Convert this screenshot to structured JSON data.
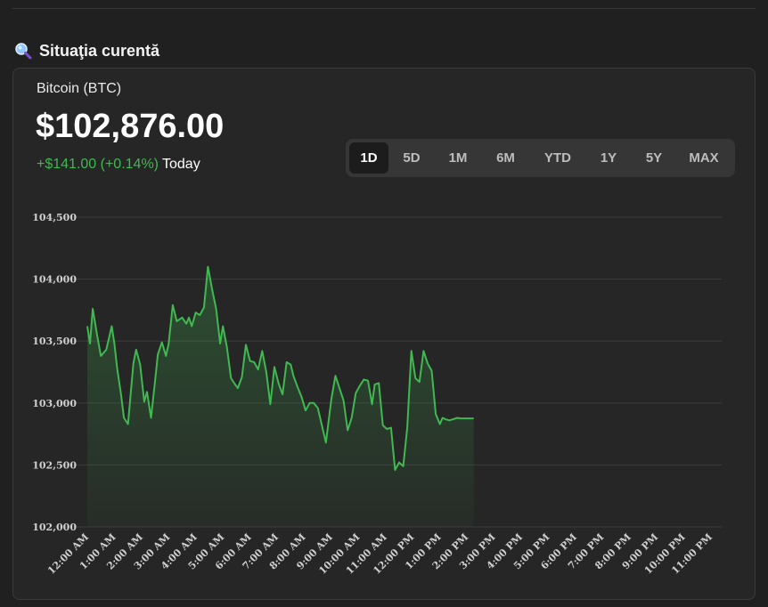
{
  "section": {
    "title": "Situaţia curentă",
    "icon": "search-icon"
  },
  "asset": {
    "name": "Bitcoin (BTC)",
    "price": "$102,876.00",
    "change": "+$141.00 (+0.14%)",
    "period": "Today"
  },
  "range_tabs": [
    "1D",
    "5D",
    "1M",
    "6M",
    "YTD",
    "1Y",
    "5Y",
    "MAX"
  ],
  "active_range": "1D",
  "colors": {
    "up": "#3fb950",
    "grid": "#3c3c3c",
    "axis_text": "#cfcfcf",
    "line": "#3fb950"
  },
  "chart_data": {
    "type": "area",
    "xlabel": "",
    "ylabel": "",
    "ylim": [
      102000,
      104500
    ],
    "yticks": [
      102000,
      102500,
      103000,
      103500,
      104000,
      104500
    ],
    "ytick_labels": [
      "102,000",
      "102,500",
      "103,000",
      "103,500",
      "104,000",
      "104,500"
    ],
    "xlim": [
      0,
      23
    ],
    "xticks": [
      0,
      1,
      2,
      3,
      4,
      5,
      6,
      7,
      8,
      9,
      10,
      11,
      12,
      13,
      14,
      15,
      16,
      17,
      18,
      19,
      20,
      21,
      22,
      23
    ],
    "xtick_labels": [
      "12:00 AM",
      "1:00 AM",
      "2:00 AM",
      "3:00 AM",
      "4:00 AM",
      "5:00 AM",
      "6:00 AM",
      "7:00 AM",
      "8:00 AM",
      "9:00 AM",
      "10:00 AM",
      "11:00 AM",
      "12:00 PM",
      "1:00 PM",
      "2:00 PM",
      "3:00 PM",
      "4:00 PM",
      "5:00 PM",
      "6:00 PM",
      "7:00 PM",
      "8:00 PM",
      "9:00 PM",
      "10:00 PM",
      "11:00 PM"
    ],
    "grid": true,
    "series": [
      {
        "x": [
          0,
          0.1,
          0.2,
          0.35,
          0.5,
          0.7,
          0.9,
          1.0,
          1.1,
          1.25,
          1.35,
          1.5,
          1.7,
          1.8,
          1.95,
          2.1,
          2.2,
          2.35,
          2.5,
          2.6,
          2.75,
          2.9,
          3.0,
          3.15,
          3.3,
          3.5,
          3.65,
          3.75,
          3.85,
          4.0,
          4.15,
          4.3,
          4.45,
          4.6,
          4.75,
          4.9,
          5.0,
          5.15,
          5.3,
          5.45,
          5.55,
          5.7,
          5.85,
          6.0,
          6.15,
          6.3,
          6.45,
          6.6,
          6.75,
          6.9,
          7.05,
          7.2,
          7.35,
          7.5,
          7.6,
          7.75,
          7.9,
          8.05,
          8.2,
          8.35,
          8.5,
          8.65,
          8.8,
          9.0,
          9.15,
          9.3,
          9.45,
          9.6,
          9.75,
          9.9,
          10.05,
          10.2,
          10.35,
          10.5,
          10.6,
          10.75,
          10.9,
          11.05,
          11.2,
          11.35,
          11.5,
          11.65,
          11.8,
          11.95,
          12.1,
          12.25,
          12.4,
          12.55,
          12.7,
          12.85,
          13.0,
          13.1,
          13.2,
          13.35,
          13.5,
          13.65,
          13.75,
          13.85,
          13.95,
          14.05,
          14.15,
          14.25
        ],
        "y": [
          103620,
          103480,
          103760,
          103560,
          103380,
          103430,
          103620,
          103480,
          103280,
          103060,
          102880,
          102830,
          103320,
          103430,
          103310,
          103010,
          103090,
          102880,
          103180,
          103390,
          103490,
          103380,
          103480,
          103790,
          103660,
          103690,
          103640,
          103690,
          103620,
          103730,
          103710,
          103770,
          104100,
          103920,
          103760,
          103480,
          103620,
          103450,
          103200,
          103150,
          103120,
          103210,
          103470,
          103340,
          103330,
          103270,
          103420,
          103250,
          102990,
          103290,
          103160,
          103070,
          103330,
          103310,
          103220,
          103130,
          103050,
          102940,
          103000,
          103000,
          102960,
          102820,
          102680,
          103030,
          103220,
          103120,
          103020,
          102780,
          102880,
          103080,
          103140,
          103190,
          103180,
          102990,
          103150,
          103160,
          102820,
          102790,
          102800,
          102460,
          102520,
          102490,
          102800,
          103420,
          103200,
          103170,
          103420,
          103320,
          103260,
          102910,
          102830,
          102880,
          102870,
          102860,
          102870,
          102880,
          102876,
          102876,
          102876,
          102876,
          102876,
          102876
        ]
      }
    ]
  }
}
